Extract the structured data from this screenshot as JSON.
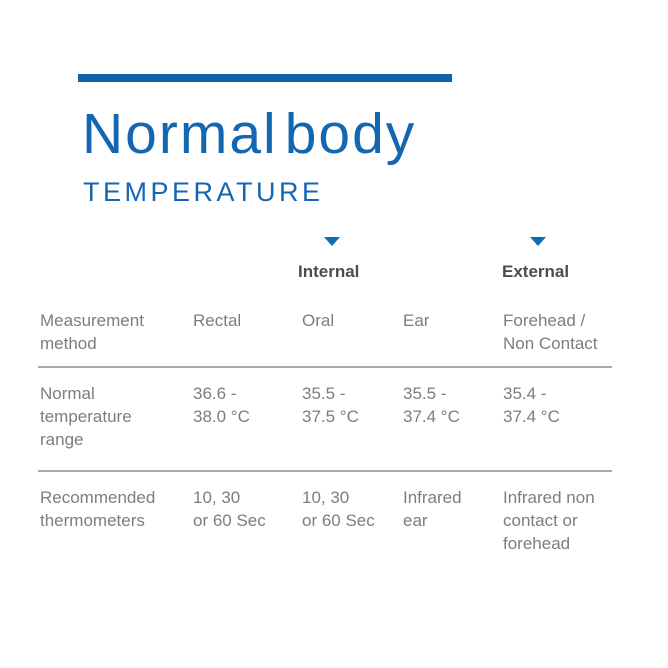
{
  "colors": {
    "accent_blue": "#0f63ac",
    "title_blue": "#1566b1",
    "triangle_blue": "#0e6cb5",
    "body_text_gray": "#7b7d80",
    "group_label_dark": "#4b4c4e",
    "divider_gray": "#a8aaad"
  },
  "header": {
    "title_primary": "Normal",
    "title_secondary": "body",
    "subtitle": "TEMPERATURE"
  },
  "groups": [
    {
      "label": "Internal"
    },
    {
      "label": "External"
    }
  ],
  "table": {
    "rows": [
      {
        "label": "Measurement\nmethod",
        "cells": [
          "Rectal",
          "Oral",
          "Ear",
          "Forehead /\nNon Contact"
        ]
      },
      {
        "label": "Normal\ntemperature\nrange",
        "cells": [
          "36.6 -\n38.0 °C",
          "35.5 -\n37.5 °C",
          "35.5 -\n37.4 °C",
          "35.4 -\n37.4 °C"
        ]
      },
      {
        "label": "Recommended\nthermometers",
        "cells": [
          "10, 30\nor 60 Sec",
          "10, 30\nor 60 Sec",
          "Infrared\near",
          "Infrared non\ncontact or\nforehead"
        ]
      }
    ]
  },
  "chart_data": {
    "type": "table",
    "title": "Normal body TEMPERATURE",
    "column_groups": [
      {
        "label": "Internal",
        "columns": [
          "Oral",
          "Ear"
        ]
      },
      {
        "label": "External",
        "columns": [
          "Forehead / Non Contact"
        ]
      }
    ],
    "columns": [
      "Measurement method",
      "Rectal",
      "Oral",
      "Ear",
      "Forehead / Non Contact"
    ],
    "rows": [
      {
        "label": "Normal temperature range",
        "values": [
          "36.6 - 38.0 °C",
          "35.5 - 37.5 °C",
          "35.5 - 37.4 °C",
          "35.4 - 37.4 °C"
        ]
      },
      {
        "label": "Recommended thermometers",
        "values": [
          "10, 30 or 60 Sec",
          "10, 30 or 60 Sec",
          "Infrared ear",
          "Infrared non contact or forehead"
        ]
      }
    ]
  }
}
